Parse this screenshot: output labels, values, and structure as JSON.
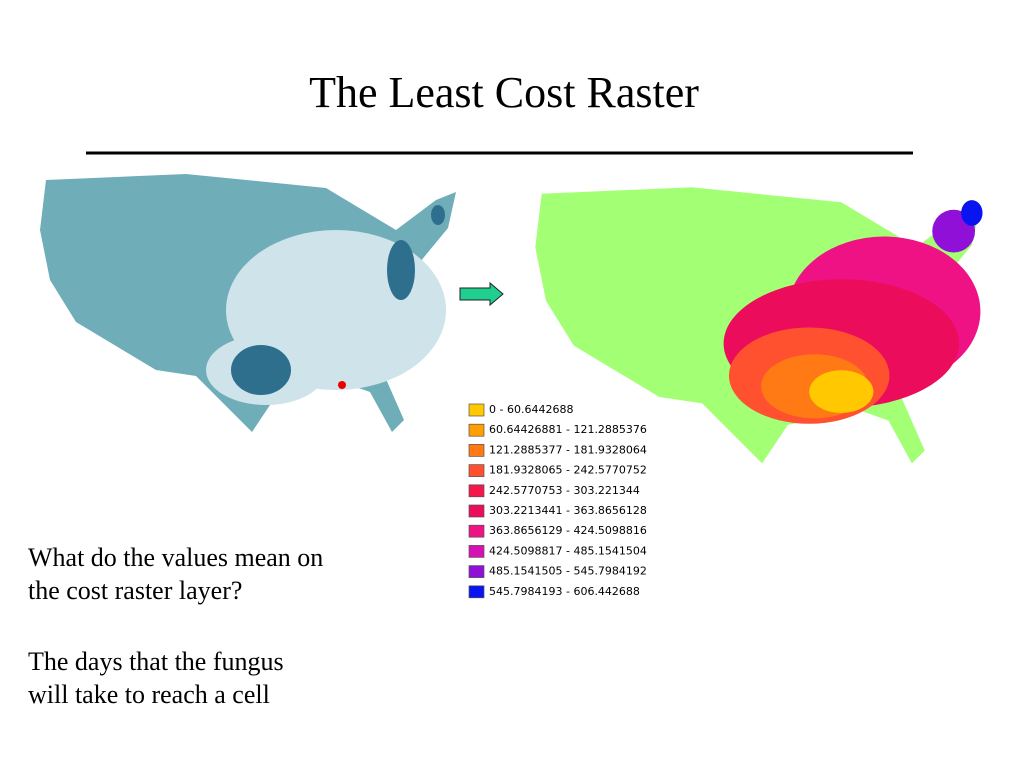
{
  "header": {
    "title": "The Least Cost Raster"
  },
  "legend": {
    "items": [
      {
        "label": "0 - 60.6442688",
        "color": "#ffc800"
      },
      {
        "label": "60.64426881 - 121.2885376",
        "color": "#ff9f00"
      },
      {
        "label": "121.2885377 - 181.9328064",
        "color": "#ff7a14"
      },
      {
        "label": "181.9328065 - 242.5770752",
        "color": "#ff5030"
      },
      {
        "label": "242.5770753 - 303.221344",
        "color": "#f5164a"
      },
      {
        "label": "303.2213441 - 363.8656128",
        "color": "#ec0c5c"
      },
      {
        "label": "363.8656129 - 424.5098816",
        "color": "#ee1284"
      },
      {
        "label": "424.5098817 - 485.1541504",
        "color": "#d510b4"
      },
      {
        "label": "485.1541505 - 545.7984192",
        "color": "#9010d8"
      },
      {
        "label": "545.7984193 - 606.442688",
        "color": "#0a14f0"
      }
    ]
  },
  "body": {
    "question": [
      "What do the values mean on",
      "the cost raster layer?"
    ],
    "answer": [
      "The days that the fungus",
      "will take to reach a cell"
    ]
  }
}
